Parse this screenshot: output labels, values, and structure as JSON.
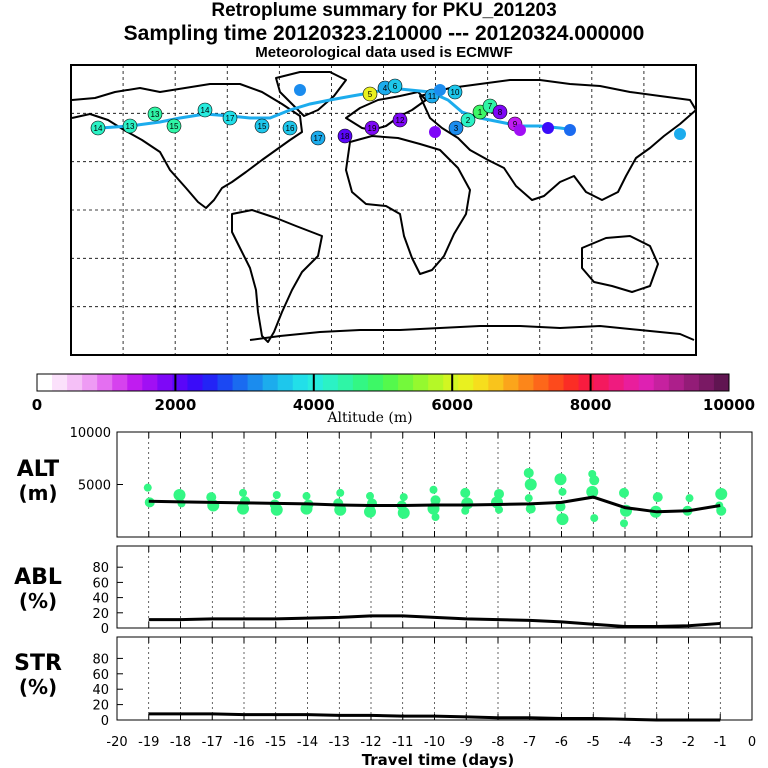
{
  "header": {
    "title": "Retroplume summary for PKU_201203",
    "sampling": "Sampling time   20120323.210000 --- 20120324.000000",
    "met": "Meteorological data used is ECMWF"
  },
  "colorbar": {
    "label": "Altitude (m)",
    "ticks": [
      "0",
      "2000",
      "4000",
      "6000",
      "8000",
      "10000"
    ],
    "colors": [
      "#ffffff",
      "#fbe1fb",
      "#f5c0f7",
      "#ee9bf4",
      "#e46ff1",
      "#d642ee",
      "#c01cf0",
      "#a10ff4",
      "#7e08f7",
      "#5a06f9",
      "#3a0cf9",
      "#2324f6",
      "#1b48f3",
      "#1a6bf0",
      "#1b8cee",
      "#1caced",
      "#1ec7ec",
      "#22dfe9",
      "#27ecde",
      "#2bf2c5",
      "#2ff5a6",
      "#33f784",
      "#3df866",
      "#54f94c",
      "#74f93b",
      "#95f92f",
      "#b5f827",
      "#d2f622",
      "#e9f11f",
      "#f6de1d",
      "#f9c41c",
      "#fba51b",
      "#fc861a",
      "#fd671a",
      "#fd4a1c",
      "#fb2d25",
      "#f81c3f",
      "#f4195e",
      "#ef1b7f",
      "#e91e9c",
      "#de21b2",
      "#c6219f",
      "#ad1f8b",
      "#931c77",
      "#7a1964",
      "#601551"
    ]
  },
  "map": {
    "plume_labels": [
      "14",
      "13",
      "13",
      "15",
      "14",
      "17",
      "15",
      "16",
      "17",
      "18",
      "19",
      "12",
      "11",
      "10",
      "5",
      "4",
      "6",
      "3",
      "2",
      "1",
      "7",
      "8",
      "9"
    ]
  },
  "chart_data": [
    {
      "type": "scatter",
      "panel": "ALT",
      "ylabel": "ALT (m)",
      "xlabel": "Travel time (days)",
      "xlim": [
        -20,
        0
      ],
      "ylim": [
        0,
        10000
      ],
      "yticks": [
        "10000",
        "5000"
      ],
      "xticks": [
        "-20",
        "-19",
        "-18",
        "-17",
        "-16",
        "-15",
        "-14",
        "-13",
        "-12",
        "-11",
        "-10",
        "-9",
        "-8",
        "-7",
        "-6",
        "-5",
        "-4",
        "-3",
        "-2",
        "-1",
        "0"
      ],
      "mean_line": {
        "x": [
          -19,
          -18,
          -17,
          -16,
          -15,
          -14,
          -13,
          -12,
          -11,
          -10,
          -9,
          -8,
          -7,
          -6,
          -5,
          -4,
          -3,
          -2,
          -1
        ],
        "y": [
          3400,
          3350,
          3300,
          3250,
          3200,
          3150,
          3050,
          3000,
          3000,
          3050,
          3050,
          3100,
          3150,
          3300,
          3800,
          2800,
          2400,
          2500,
          3000
        ]
      },
      "points": {
        "x": [
          -19,
          -19,
          -18,
          -18,
          -17,
          -17,
          -16,
          -16,
          -16,
          -15,
          -15,
          -15,
          -14,
          -14,
          -14,
          -13,
          -13,
          -13,
          -12,
          -12,
          -12,
          -11,
          -11,
          -11,
          -10,
          -10,
          -10,
          -10,
          -9,
          -9,
          -9,
          -8,
          -8,
          -8,
          -7,
          -7,
          -7,
          -7,
          -6,
          -6,
          -6,
          -6,
          -5,
          -5,
          -5,
          -5,
          -4,
          -4,
          -4,
          -3,
          -3,
          -2,
          -2,
          -1,
          -1,
          -1
        ],
        "y": [
          4700,
          3300,
          4000,
          3200,
          3800,
          3000,
          4200,
          3400,
          2700,
          4000,
          3100,
          2600,
          3900,
          3100,
          2700,
          4200,
          3200,
          2600,
          3900,
          3200,
          2400,
          3800,
          3000,
          2300,
          4500,
          3500,
          2700,
          1900,
          4200,
          3200,
          2500,
          4100,
          3300,
          2600,
          6100,
          5000,
          3700,
          2700,
          5500,
          4300,
          2900,
          1700,
          6000,
          5400,
          4300,
          1800,
          4200,
          2500,
          1300,
          3800,
          2400,
          3700,
          2500,
          4100,
          3000,
          2500
        ]
      }
    },
    {
      "type": "line",
      "panel": "ABL",
      "ylabel": "ABL (%)",
      "ylim": [
        0,
        100
      ],
      "yticks": [
        "0",
        "20",
        "40",
        "60",
        "80"
      ],
      "x": [
        -19,
        -18,
        -17,
        -16,
        -15,
        -14,
        -13,
        -12,
        -11,
        -10,
        -9,
        -8,
        -7,
        -6,
        -5,
        -4,
        -3,
        -2,
        -1
      ],
      "y": [
        11,
        11,
        12,
        12,
        12,
        13,
        14,
        16,
        16,
        14,
        12,
        11,
        10,
        8,
        5,
        2,
        2,
        3,
        6
      ]
    },
    {
      "type": "line",
      "panel": "STR",
      "ylabel": "STR (%)",
      "ylim": [
        0,
        100
      ],
      "yticks": [
        "0",
        "20",
        "40",
        "60",
        "80"
      ],
      "x": [
        -19,
        -18,
        -17,
        -16,
        -15,
        -14,
        -13,
        -12,
        -11,
        -10,
        -9,
        -8,
        -7,
        -6,
        -5,
        -4,
        -3,
        -2,
        -1
      ],
      "y": [
        8,
        8,
        8,
        7,
        7,
        7,
        6,
        6,
        5,
        5,
        4,
        3,
        3,
        2,
        2,
        1,
        0,
        0,
        0
      ]
    }
  ]
}
